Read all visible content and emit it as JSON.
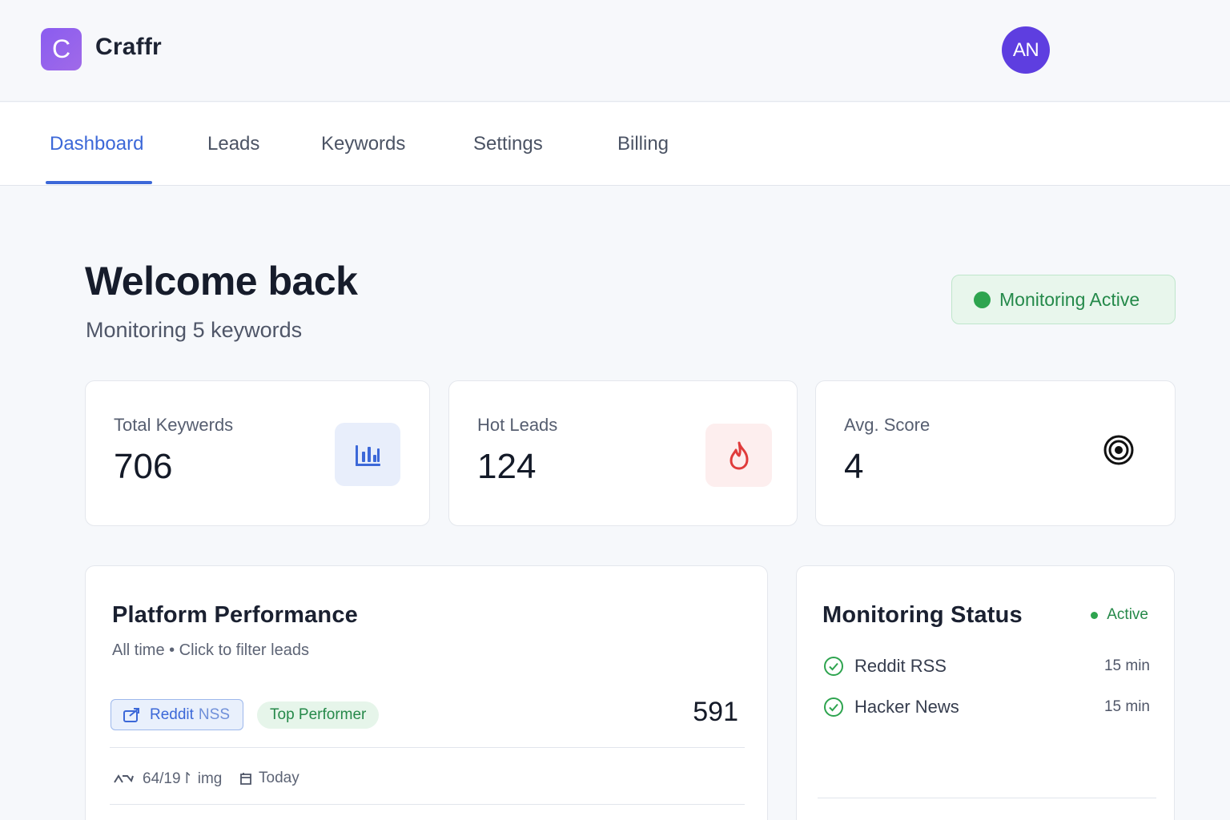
{
  "brand": {
    "logo_letter": "C",
    "name": "Craffr",
    "color": "#8a5cf0"
  },
  "user": {
    "initials": "AN"
  },
  "nav": {
    "tabs": [
      {
        "label": "Dashboard",
        "active": true
      },
      {
        "label": "Leads"
      },
      {
        "label": "Keywords"
      },
      {
        "label": "Settings"
      },
      {
        "label": "Billing"
      }
    ]
  },
  "header": {
    "title": "Welcome back",
    "subtitle": "Monitoring 5 keywords",
    "status": "Monitoring Active"
  },
  "stats": [
    {
      "label": "Total Keywerds",
      "value": "706",
      "icon": "bar-chart-icon"
    },
    {
      "label": "Hot Leads",
      "value": "124",
      "icon": "flame-icon"
    },
    {
      "label": "Avg. Score",
      "value": "4",
      "icon": "target-icon"
    }
  ],
  "platform_performance": {
    "title": "Platform Performance",
    "subtitle": "All time • Click to filter leads",
    "source_label": "Reddit",
    "source_suffix": "NSS",
    "badge": "Top Performer",
    "count": "591",
    "meta_ratio": "64/19↾ img",
    "meta_date": "Today"
  },
  "monitoring_status": {
    "title": "Monitoring Status",
    "state": "Active",
    "sources": [
      {
        "name": "Reddit RSS",
        "interval": "15 min"
      },
      {
        "name": "Hacker News",
        "interval": "15 min"
      }
    ]
  },
  "colors": {
    "accent": "#3c68d8",
    "success": "#2ea44f",
    "danger": "#e03b3b"
  }
}
